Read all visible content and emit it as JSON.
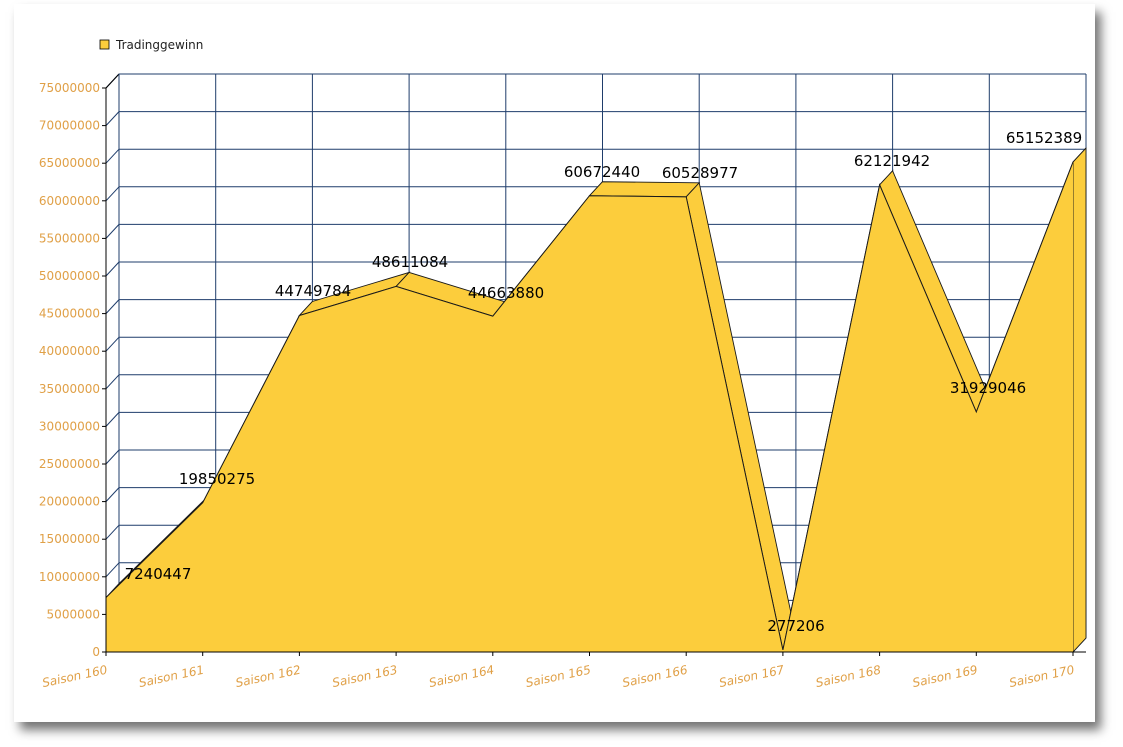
{
  "chart_data": {
    "type": "area",
    "categories": [
      "Saison 160",
      "Saison 161",
      "Saison 162",
      "Saison 163",
      "Saison 164",
      "Saison 165",
      "Saison 166",
      "Saison 167",
      "Saison 168",
      "Saison 169",
      "Saison 170"
    ],
    "series": [
      {
        "name": "Tradinggewinn",
        "values": [
          7240447,
          19850275,
          44749784,
          48611084,
          44663880,
          60672440,
          60528977,
          277206,
          62121942,
          31929046,
          65152389
        ],
        "color": "#fccd3c"
      }
    ],
    "data_labels": [
      "7240447",
      "19850275",
      "44749784",
      "48611084",
      "44663880",
      "60672440",
      "60528977",
      "277206",
      "62121942",
      "31929046",
      "65152389"
    ],
    "y_ticks": [
      "0",
      "5000000",
      "10000000",
      "15000000",
      "20000000",
      "25000000",
      "30000000",
      "35000000",
      "40000000",
      "45000000",
      "50000000",
      "55000000",
      "60000000",
      "65000000",
      "70000000",
      "75000000"
    ],
    "ylim": [
      0,
      75000000
    ],
    "grid": true,
    "grid_color": "#1f3d6b",
    "legend_position": "top-left",
    "axis_text_color": "#e0a047",
    "projection": "3d"
  }
}
